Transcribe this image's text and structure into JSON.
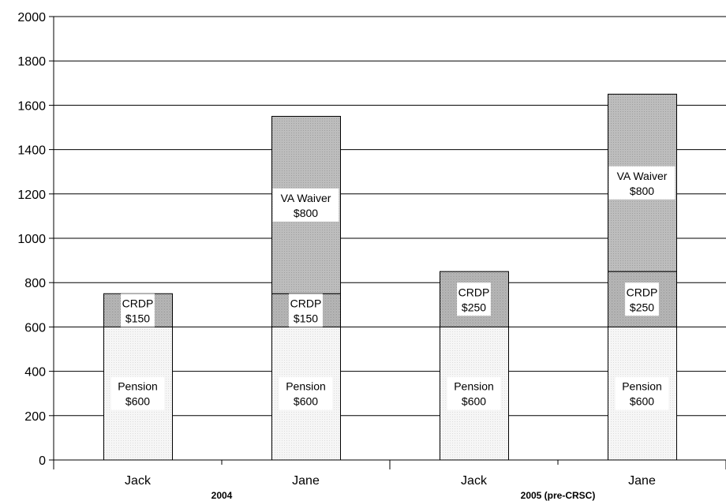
{
  "chart_data": {
    "type": "bar",
    "stacked": true,
    "categories": [
      "Jack",
      "Jane",
      "Jack",
      "Jane"
    ],
    "groups": [
      {
        "label": "2004",
        "categories": [
          0,
          1
        ]
      },
      {
        "label": "2005 (pre-CRSC)",
        "categories": [
          2,
          3
        ]
      }
    ],
    "series": [
      {
        "key": "pension",
        "values": [
          600,
          600,
          600,
          600
        ],
        "labels": [
          "Pension $600",
          "Pension $600",
          "Pension $600",
          "Pension $600"
        ]
      },
      {
        "key": "crdp",
        "values": [
          150,
          150,
          250,
          250
        ],
        "labels": [
          "CRDP $150",
          "CRDP $150",
          "CRDP $250",
          "CRDP $250"
        ]
      },
      {
        "key": "va_waiver",
        "values": [
          0,
          800,
          0,
          800
        ],
        "labels": [
          "",
          "VA Waiver $800",
          "",
          "VA Waiver $800"
        ]
      }
    ],
    "yticks": [
      "0",
      "200",
      "400",
      "600",
      "800",
      "1000",
      "1200",
      "1400",
      "1600",
      "1800",
      "2000"
    ],
    "ylim": [
      0,
      2000
    ],
    "grid": true,
    "legend": "none",
    "fills": {
      "pension": "#f4f4f4",
      "crdp": "#c4c4c4",
      "va_waiver": "#b8b8b8"
    }
  }
}
